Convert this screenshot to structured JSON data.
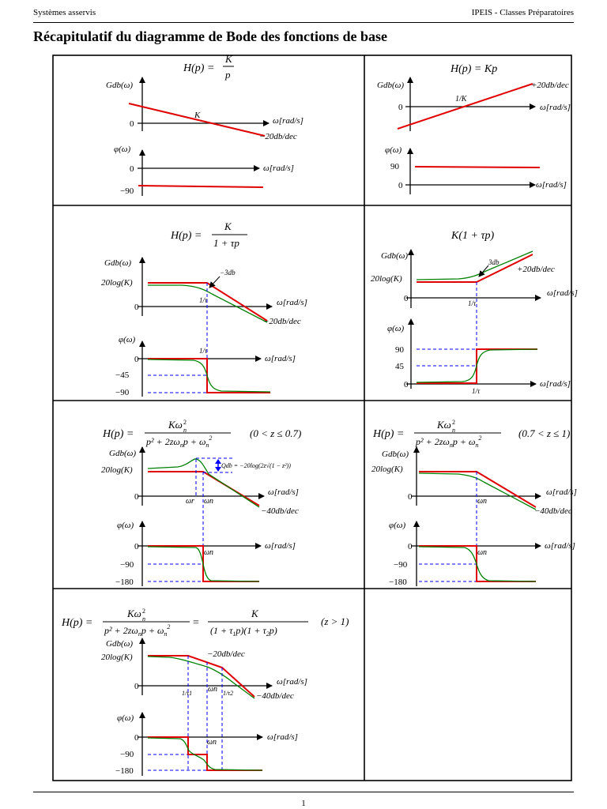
{
  "header": {
    "left": "Systèmes asservis",
    "right": "IPEIS  -  Classes Préparatoires"
  },
  "title": "Récapitulatif du diagramme de Bode des fonctions de base",
  "footer": {
    "page": "1"
  },
  "panels": {
    "p1": {
      "formula": "H(p) = K / p",
      "gain_axis": "Gdb(ω)",
      "phase_axis": "φ(ω)",
      "x_axis": "ω[rad/s]",
      "gain_ticks": [
        "0"
      ],
      "phase_ticks": [
        "0",
        "−90"
      ],
      "marker": "K",
      "slope": "−20db/dec"
    },
    "p2": {
      "formula": "H(p) = Kp",
      "gain_axis": "Gdb(ω)",
      "phase_axis": "φ(ω)",
      "x_axis": "ω[rad/s]",
      "gain_ticks": [
        "0"
      ],
      "phase_ticks": [
        "90",
        "0"
      ],
      "marker": "1/K",
      "slope": "+20db/dec"
    },
    "p3": {
      "formula": "H(p) = K / (1 + τp)",
      "gain_axis": "Gdb(ω)",
      "phase_axis": "φ(ω)",
      "x_axis": "ω[rad/s]",
      "gain_ticks": [
        "20log(K)",
        "0"
      ],
      "phase_ticks": [
        "0",
        "−45",
        "−90"
      ],
      "marker": "1/τ",
      "slope": "−20db/dec",
      "annotation": "−3db"
    },
    "p4": {
      "formula": "K(1 + τp)",
      "gain_axis": "Gdb(ω)",
      "phase_axis": "φ(ω)",
      "x_axis": "ω[rad/s]",
      "gain_ticks": [
        "20log(K)",
        "0"
      ],
      "phase_ticks": [
        "90",
        "45",
        "0"
      ],
      "marker": "1/τ",
      "slope": "+20db/dec",
      "annotation": "3db"
    },
    "p5": {
      "formula": "H(p) = Kωn² / (p² + 2zωnp + ωn²)",
      "condition": "(0 < z ≤ 0.7)",
      "gain_axis": "Gdb(ω)",
      "phase_axis": "φ(ω)",
      "x_axis": "ω[rad/s]",
      "gain_ticks": [
        "20log(K)",
        "0"
      ],
      "phase_ticks": [
        "0",
        "−90",
        "−180"
      ],
      "marker_r": "ωr",
      "marker_n": "ωn",
      "slope": "−40db/dec",
      "annotation": "Qdb = −20log(2z√(1 − z²))"
    },
    "p6": {
      "formula": "H(p) = Kωn² / (p² + 2zωnp + ωn²)",
      "condition": "(0.7 < z ≤ 1)",
      "gain_axis": "Gdb(ω)",
      "phase_axis": "φ(ω)",
      "x_axis": "ω[rad/s]",
      "gain_ticks": [
        "20log(K)",
        "0"
      ],
      "phase_ticks": [
        "0",
        "−90",
        "−180"
      ],
      "marker_n": "ωn",
      "slope": "−40db/dec"
    },
    "p7": {
      "formula": "H(p) = Kωn² / (p² + 2zωnp + ωn²) = K / ((1 + τ1p)(1 + τ2p))",
      "condition": "(z > 1)",
      "gain_axis": "Gdb(ω)",
      "phase_axis": "φ(ω)",
      "x_axis": "ω[rad/s]",
      "gain_ticks": [
        "20log(K)",
        "0"
      ],
      "phase_ticks": [
        "0",
        "−90",
        "−180"
      ],
      "marker_1": "1/τ1",
      "marker_n": "ωn",
      "marker_2": "1/τ2",
      "slope_1": "−20db/dec",
      "slope_2": "−40db/dec"
    }
  },
  "colors": {
    "asymptote": "#e00000",
    "real_curve": "#008000",
    "guide": "#0000ff"
  }
}
